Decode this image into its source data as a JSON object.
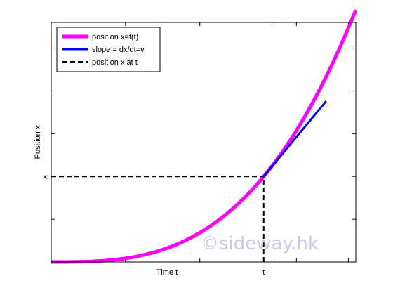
{
  "chart_data": {
    "type": "line",
    "xlim": [
      0,
      2.05
    ],
    "ylim": [
      0,
      2.8
    ],
    "grid": false,
    "legend_position": "top-left",
    "xlabel": "Time t",
    "ylabel": "Position x",
    "x_ticks": [
      0.5,
      1.0,
      1.5,
      1.65,
      2.0
    ],
    "y_ticks": [
      0.5,
      1.0,
      1.5,
      2.0,
      2.5
    ],
    "x_tick_labels": [
      {
        "value": 1.43,
        "text": "t"
      }
    ],
    "y_tick_labels": [
      {
        "value": 1.0,
        "text": "x"
      }
    ],
    "point": {
      "t": 1.43,
      "x": 1.0
    },
    "series": [
      {
        "name": "position x=f(t)",
        "kind": "curve",
        "color": "#ff00ff",
        "function": "x = 1.0 * (t / 1.43)^3",
        "x_range": [
          0,
          2.05
        ]
      },
      {
        "name": "slope = dx/dt=v",
        "kind": "tangent",
        "color": "#0000ee",
        "x": [
          1.43,
          1.85
        ],
        "y": [
          1.0,
          1.88
        ]
      },
      {
        "name": "position x at t",
        "kind": "dashed",
        "color": "#000000",
        "paths": [
          {
            "x": [
              0,
              1.43
            ],
            "y": [
              1.0,
              1.0
            ]
          },
          {
            "x": [
              1.43,
              1.43
            ],
            "y": [
              0,
              1.0
            ]
          }
        ]
      }
    ]
  },
  "watermark": "©sideway.hk"
}
